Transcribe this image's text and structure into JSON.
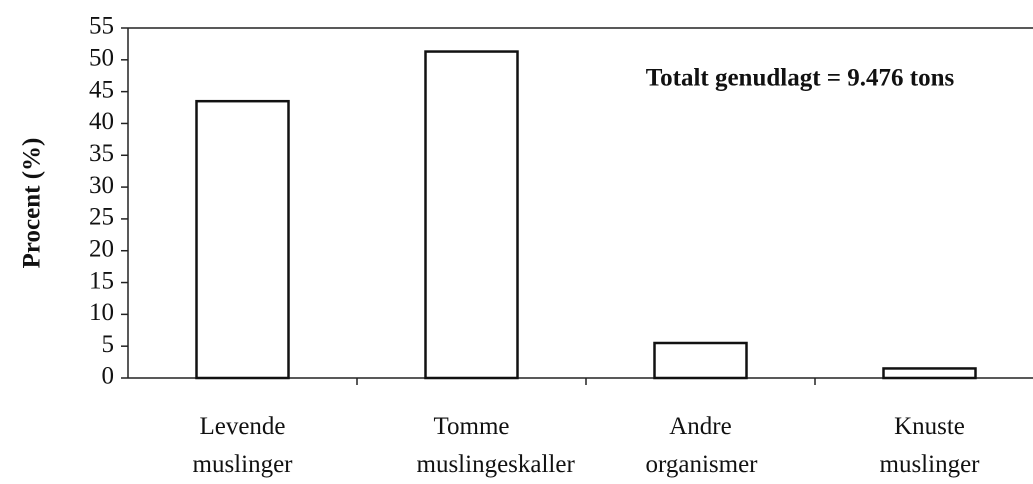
{
  "chart_data": {
    "type": "bar",
    "annotation": "Totalt genudlagt = 9.476 tons",
    "y_label": "Procent (%)",
    "categories": [
      "Levende muslinger",
      "Tomme muslingeskaller",
      "Andre organismer",
      "Knuste muslinger"
    ],
    "values": [
      43.5,
      51.3,
      5.5,
      1.5
    ],
    "color": "#ffffff",
    "ylim": [
      0,
      55
    ],
    "yticks": [
      0,
      5,
      10,
      15,
      20,
      25,
      30,
      35,
      40,
      45,
      50,
      55
    ],
    "grid": false
  }
}
